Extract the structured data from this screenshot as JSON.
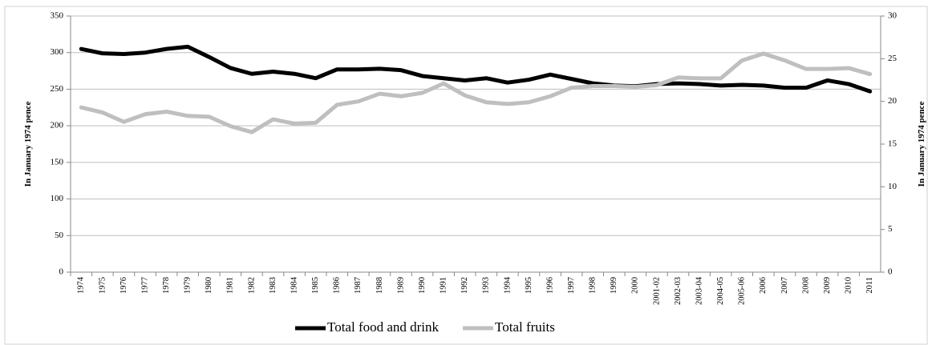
{
  "chart_data": {
    "type": "line",
    "categories": [
      "1974",
      "1975",
      "1976",
      "1977",
      "1978",
      "1979",
      "1980",
      "1981",
      "1982",
      "1983",
      "1984",
      "1985",
      "1986",
      "1987",
      "1988",
      "1989",
      "1990",
      "1991",
      "1992",
      "1993",
      "1994",
      "1995",
      "1996",
      "1997",
      "1998",
      "1999",
      "2000",
      "2001-02",
      "2002-03",
      "2003-04",
      "2004-05",
      "2005-06",
      "2006",
      "2007",
      "2008",
      "2009",
      "2010",
      "2011"
    ],
    "series": [
      {
        "name": "Total food and drink",
        "color": "#000000",
        "values": [
          305,
          299,
          298,
          300,
          305,
          308,
          294,
          279,
          271,
          274,
          271,
          265,
          277,
          277,
          278,
          276,
          268,
          265,
          262,
          265,
          259,
          263,
          270,
          264,
          258,
          255,
          254,
          257,
          258,
          257,
          255,
          256,
          255,
          252,
          252,
          262,
          257,
          247
        ]
      },
      {
        "name": "Total fruits",
        "color": "#bfbfbf",
        "axis": "y2",
        "values": [
          19.3,
          18.7,
          17.6,
          18.5,
          18.8,
          18.3,
          18.2,
          17.1,
          16.4,
          17.9,
          17.4,
          17.5,
          19.6,
          20.0,
          20.9,
          20.6,
          21.0,
          22.1,
          20.7,
          19.9,
          19.7,
          19.9,
          20.6,
          21.6,
          21.8,
          21.8,
          21.7,
          21.9,
          22.8,
          22.7,
          22.7,
          24.8,
          25.6,
          24.8,
          23.8,
          23.8,
          23.9,
          23.2
        ]
      }
    ],
    "y_label": "In January 1974 pence",
    "y2_label": "In January 1974 pence",
    "ylim": [
      0,
      350
    ],
    "yticks": [
      0,
      50,
      100,
      150,
      200,
      250,
      300,
      350
    ],
    "y2lim": [
      0,
      30
    ],
    "y2ticks": [
      0,
      5,
      10,
      15,
      20,
      25,
      30
    ],
    "grid": true,
    "legend": "bottom"
  }
}
